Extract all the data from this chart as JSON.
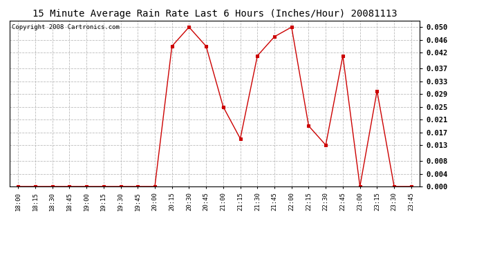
{
  "title": "15 Minute Average Rain Rate Last 6 Hours (Inches/Hour) 20081113",
  "copyright": "Copyright 2008 Cartronics.com",
  "x_labels": [
    "18:00",
    "18:15",
    "18:30",
    "18:45",
    "19:00",
    "19:15",
    "19:30",
    "19:45",
    "20:00",
    "20:15",
    "20:30",
    "20:45",
    "21:00",
    "21:15",
    "21:30",
    "21:45",
    "22:00",
    "22:15",
    "22:30",
    "22:45",
    "23:00",
    "23:15",
    "23:30",
    "23:45"
  ],
  "y_values": [
    0.0,
    0.0,
    0.0,
    0.0,
    0.0,
    0.0,
    0.0,
    0.0,
    0.0,
    0.044,
    0.05,
    0.044,
    0.025,
    0.015,
    0.041,
    0.047,
    0.05,
    0.019,
    0.013,
    0.041,
    0.0,
    0.03,
    0.0,
    0.0
  ],
  "yticks": [
    0.0,
    0.004,
    0.008,
    0.013,
    0.017,
    0.021,
    0.025,
    0.029,
    0.033,
    0.037,
    0.042,
    0.046,
    0.05
  ],
  "ytick_labels": [
    "0.000",
    "0.004",
    "0.008",
    "0.013",
    "0.017",
    "0.021",
    "0.025",
    "0.029",
    "0.033",
    "0.037",
    "0.042",
    "0.046",
    "0.050"
  ],
  "line_color": "#cc0000",
  "marker_color": "#cc0000",
  "bg_color": "#ffffff",
  "grid_color": "#bbbbbb",
  "title_fontsize": 10,
  "copyright_fontsize": 6.5,
  "ylim": [
    0.0,
    0.052
  ],
  "ylabel_right": true
}
